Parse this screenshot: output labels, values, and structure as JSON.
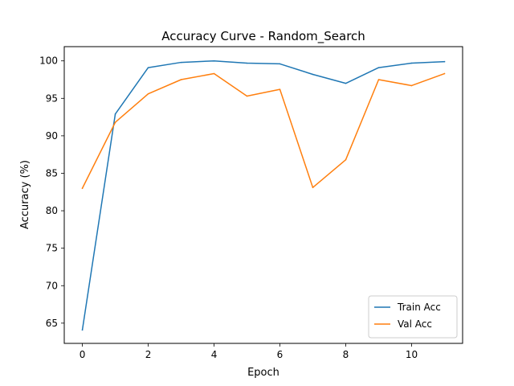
{
  "chart_data": {
    "type": "line",
    "title": "Accuracy Curve - Random_Search",
    "xlabel": "Epoch",
    "ylabel": "Accuracy (%)",
    "xlim": [
      -0.55,
      11.55
    ],
    "ylim": [
      62.3,
      101.9
    ],
    "x_ticks": [
      0,
      2,
      4,
      6,
      8,
      10
    ],
    "y_ticks": [
      65,
      70,
      75,
      80,
      85,
      90,
      95,
      100
    ],
    "grid": false,
    "legend_position": "lower-right",
    "x": [
      0,
      1,
      2,
      3,
      4,
      5,
      6,
      7,
      8,
      9,
      10,
      11
    ],
    "series": [
      {
        "name": "Train Acc",
        "color": "#1f77b4",
        "values": [
          64.1,
          92.9,
          99.1,
          99.8,
          100.0,
          99.7,
          99.6,
          98.2,
          97.0,
          99.1,
          99.7,
          99.9
        ]
      },
      {
        "name": "Val Acc",
        "color": "#ff7f0e",
        "values": [
          83.0,
          91.8,
          95.6,
          97.5,
          98.3,
          95.3,
          96.2,
          83.1,
          86.8,
          97.5,
          96.7,
          98.3
        ]
      }
    ]
  }
}
